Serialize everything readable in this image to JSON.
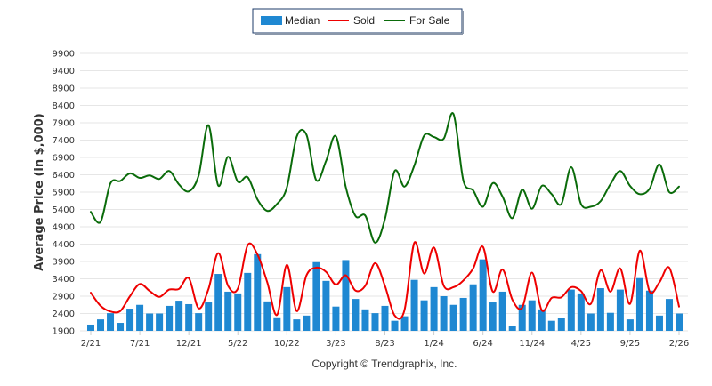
{
  "chart_data": {
    "type": "bar",
    "title": "",
    "xlabel": "",
    "ylabel": "Average Price (in $,000)",
    "ylim": [
      1900,
      9900
    ],
    "yticks": [
      1900,
      2400,
      2900,
      3400,
      3900,
      4400,
      4900,
      5400,
      5900,
      6400,
      6900,
      7400,
      7900,
      8400,
      8900,
      9400,
      9900
    ],
    "grid": true,
    "legend_position": "top-center",
    "x_tick_labels": [
      "2/21",
      "7/21",
      "12/21",
      "5/22",
      "10/22",
      "3/23",
      "8/23",
      "1/24",
      "6/24",
      "11/24",
      "4/25",
      "9/25",
      "2/26"
    ],
    "x_tick_every": 5,
    "categories": [
      "2/21",
      "3/21",
      "4/21",
      "5/21",
      "6/21",
      "7/21",
      "8/21",
      "9/21",
      "10/21",
      "11/21",
      "12/21",
      "1/22",
      "2/22",
      "3/22",
      "4/22",
      "5/22",
      "6/22",
      "7/22",
      "8/22",
      "9/22",
      "10/22",
      "11/22",
      "12/22",
      "1/23",
      "2/23",
      "3/23",
      "4/23",
      "5/23",
      "6/23",
      "7/23",
      "8/23",
      "9/23",
      "10/23",
      "11/23",
      "12/23",
      "1/24",
      "2/24",
      "3/24",
      "4/24",
      "5/24",
      "6/24",
      "7/24",
      "8/24",
      "9/24",
      "10/24",
      "11/24",
      "12/24",
      "1/25",
      "2/25",
      "3/25",
      "4/25",
      "5/25",
      "6/25",
      "7/25",
      "8/25",
      "9/25",
      "10/25",
      "11/25",
      "12/25",
      "1/26",
      "2/26"
    ],
    "series": [
      {
        "name": "Median",
        "kind": "bar",
        "color": "#1f88d2",
        "values": [
          2080,
          2230,
          2410,
          2130,
          2540,
          2650,
          2400,
          2400,
          2620,
          2770,
          2670,
          2410,
          2720,
          3540,
          3030,
          2980,
          3570,
          4110,
          2750,
          2290,
          3160,
          2230,
          2340,
          3880,
          3340,
          2600,
          3940,
          2820,
          2520,
          2410,
          2620,
          2190,
          2320,
          3370,
          2780,
          3160,
          2900,
          2650,
          2850,
          3240,
          3960,
          2720,
          3030,
          2030,
          2650,
          2780,
          2520,
          2190,
          2270,
          3090,
          2980,
          2400,
          3130,
          2420,
          3090,
          2230,
          3420,
          3060,
          2340,
          2820,
          2400
        ]
      },
      {
        "name": "Sold",
        "kind": "line",
        "color": "#ee0000",
        "values": [
          3000,
          2620,
          2460,
          2470,
          2900,
          3250,
          3050,
          2880,
          3090,
          3110,
          3420,
          2550,
          3100,
          4140,
          3200,
          3120,
          4370,
          4100,
          3300,
          2360,
          3800,
          2470,
          3500,
          3720,
          3600,
          3230,
          3500,
          3060,
          3200,
          3850,
          3200,
          2340,
          2500,
          4440,
          3550,
          4300,
          3200,
          3160,
          3350,
          3700,
          4320,
          3030,
          3670,
          2800,
          2570,
          3580,
          2490,
          2850,
          2870,
          3160,
          3050,
          2680,
          3650,
          3030,
          3700,
          2680,
          4210,
          3030,
          3300,
          3720,
          2600
        ]
      },
      {
        "name": "For Sale",
        "kind": "line",
        "color": "#0a6b0a",
        "values": [
          5330,
          5040,
          6150,
          6220,
          6440,
          6310,
          6380,
          6280,
          6510,
          6120,
          5920,
          6380,
          7830,
          6090,
          6920,
          6200,
          6330,
          5690,
          5360,
          5560,
          6030,
          7500,
          7550,
          6240,
          6800,
          7510,
          6060,
          5210,
          5220,
          4440,
          5120,
          6510,
          6060,
          6670,
          7530,
          7490,
          7440,
          8150,
          6240,
          5950,
          5480,
          6160,
          5770,
          5150,
          5970,
          5420,
          6080,
          5840,
          5560,
          6620,
          5560,
          5480,
          5640,
          6130,
          6510,
          6080,
          5840,
          6000,
          6700,
          5900,
          6060
        ]
      }
    ]
  },
  "legend": {
    "items": [
      {
        "label": "Median",
        "icon": "bar-swatch"
      },
      {
        "label": "Sold",
        "icon": "line-swatch"
      },
      {
        "label": "For Sale",
        "icon": "line-swatch"
      }
    ]
  },
  "footer": {
    "copyright": "Copyright © Trendgraphix, Inc."
  }
}
